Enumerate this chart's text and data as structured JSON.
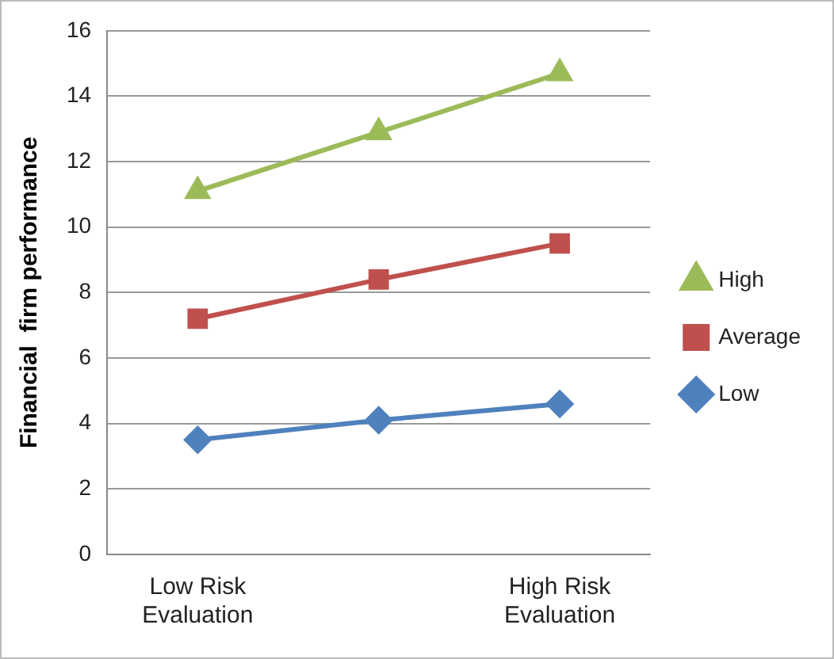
{
  "chart_data": {
    "type": "line",
    "ylabel": "Financial  firm performance",
    "categories": [
      "Low Risk Evaluation",
      null,
      "High Risk Evaluation"
    ],
    "series": [
      {
        "name": "High",
        "color": "#9bbb59",
        "marker": "triangle",
        "values": [
          11.1,
          12.9,
          14.7
        ]
      },
      {
        "name": "Average",
        "color": "#c0504d",
        "marker": "square",
        "values": [
          7.2,
          8.4,
          9.5
        ]
      },
      {
        "name": "Low",
        "color": "#4f81bd",
        "marker": "diamond",
        "values": [
          3.5,
          4.1,
          4.6
        ]
      }
    ],
    "ylim": [
      0,
      16
    ],
    "yticks": [
      0,
      2,
      4,
      6,
      8,
      10,
      12,
      14,
      16
    ],
    "grid": "y",
    "legend": "right"
  }
}
